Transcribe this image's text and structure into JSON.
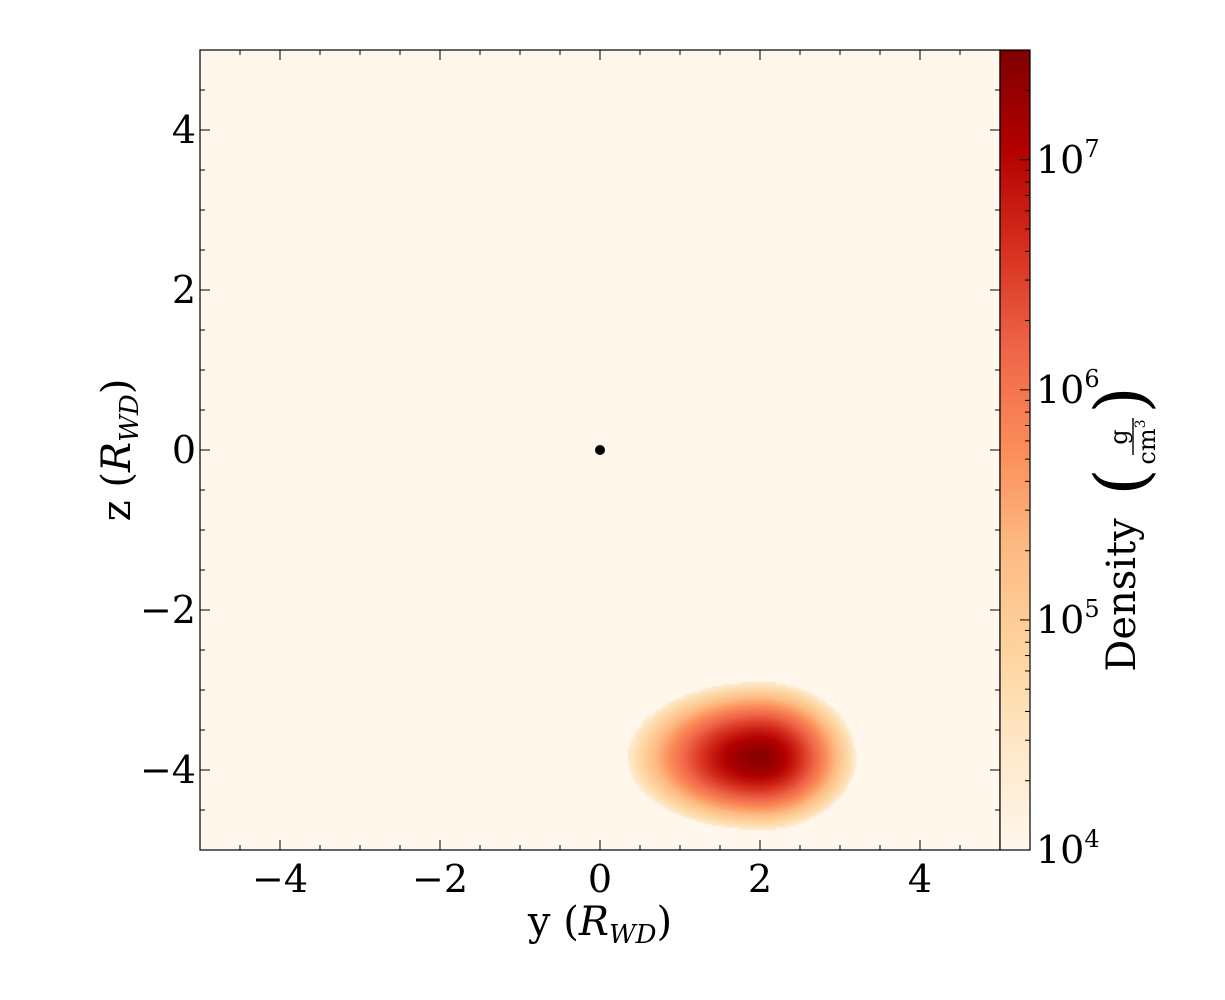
{
  "chart_data": {
    "type": "heatmap",
    "title": "",
    "xlabel": {
      "main": "y",
      "symbol": "R",
      "subscript": "WD"
    },
    "ylabel": {
      "main": "z",
      "symbol": "R",
      "subscript": "WD"
    },
    "xlim": [
      -5,
      5
    ],
    "ylim": [
      -5,
      5
    ],
    "xticks": [
      {
        "value": -4,
        "label": "−4"
      },
      {
        "value": -2,
        "label": "−2"
      },
      {
        "value": 0,
        "label": "0"
      },
      {
        "value": 2,
        "label": "2"
      },
      {
        "value": 4,
        "label": "4"
      }
    ],
    "yticks": [
      {
        "value": 4,
        "label": "4"
      },
      {
        "value": 2,
        "label": "2"
      },
      {
        "value": 0,
        "label": "0"
      },
      {
        "value": -2,
        "label": "−2"
      },
      {
        "value": -4,
        "label": "−4"
      }
    ],
    "grid": false,
    "colormap": "OrRd",
    "colormap_stops": [
      "#fff7ec",
      "#fee8c8",
      "#fdd49e",
      "#fdbb84",
      "#fc8d59",
      "#ef6548",
      "#d7301f",
      "#b30000",
      "#7f0000"
    ],
    "colorbar": {
      "label": "Density",
      "unit_numerator": "g",
      "unit_denominator": "cm",
      "unit_denominator_power": "3",
      "scale": "log",
      "range": [
        10000,
        30000000
      ],
      "ticks": [
        {
          "value": 10000,
          "base": "10",
          "exponent": "4"
        },
        {
          "value": 100000,
          "base": "10",
          "exponent": "5"
        },
        {
          "value": 1000000,
          "base": "10",
          "exponent": "6"
        },
        {
          "value": 10000000,
          "base": "10",
          "exponent": "7"
        }
      ]
    },
    "background_density": 10000,
    "blob": {
      "center_y": 2.0,
      "center_z": -3.85,
      "peak_density": 25000000,
      "extent_left": 0.35,
      "extent_right": 3.2,
      "extent_top": -2.9,
      "extent_bottom": -4.75
    },
    "marker": {
      "y": 0,
      "z": 0
    }
  }
}
